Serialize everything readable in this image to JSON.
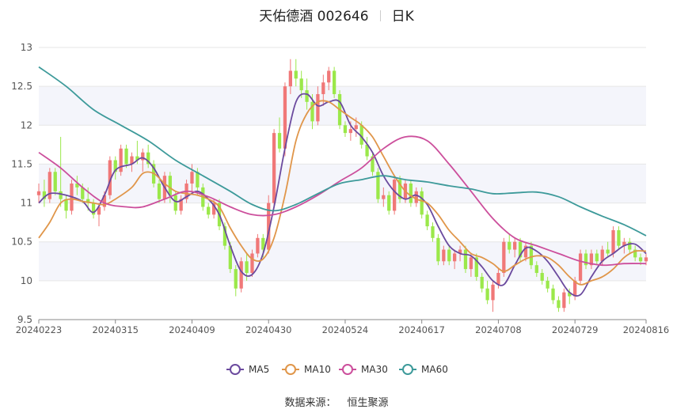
{
  "header": {
    "stock_name": "天佑德酒 002646",
    "period": "日K"
  },
  "source": {
    "label": "数据来源：",
    "provider": "恒生聚源"
  },
  "legend": [
    {
      "name": "MA5",
      "color": "#6b4a9e"
    },
    {
      "name": "MA10",
      "color": "#e0964a"
    },
    {
      "name": "MA30",
      "color": "#cc4f9c"
    },
    {
      "name": "MA60",
      "color": "#3d9a9a"
    }
  ],
  "colors": {
    "up": "#f07878",
    "down": "#9be84a",
    "band": "#f4f5fb",
    "grid": "#e6e6e6",
    "axis": "#888888"
  },
  "chart_data": {
    "type": "candlestick",
    "title": "天佑德酒 002646 日K",
    "ylim": [
      9.5,
      13
    ],
    "yticks": [
      9.5,
      10,
      10.5,
      11,
      11.5,
      12,
      12.5,
      13
    ],
    "xticks": [
      {
        "label": "20240223",
        "index": 0
      },
      {
        "label": "20240315",
        "index": 14
      },
      {
        "label": "20240409",
        "index": 28
      },
      {
        "label": "20240430",
        "index": 42
      },
      {
        "label": "20240524",
        "index": 56
      },
      {
        "label": "20240617",
        "index": 70
      },
      {
        "label": "20240708",
        "index": 84
      },
      {
        "label": "20240729",
        "index": 98
      },
      {
        "label": "20240816",
        "index": 111
      }
    ],
    "ohlc": [
      [
        11.1,
        11.25,
        11.0,
        11.15
      ],
      [
        11.15,
        11.3,
        10.95,
        11.05
      ],
      [
        11.05,
        11.45,
        11.0,
        11.4
      ],
      [
        11.4,
        11.45,
        11.1,
        11.15
      ],
      [
        11.15,
        11.85,
        10.95,
        11.05
      ],
      [
        11.05,
        11.1,
        10.8,
        10.9
      ],
      [
        10.9,
        11.3,
        10.85,
        11.25
      ],
      [
        11.25,
        11.35,
        11.1,
        11.2
      ],
      [
        11.2,
        11.25,
        11.0,
        11.05
      ],
      [
        11.05,
        11.2,
        10.9,
        11.0
      ],
      [
        11.0,
        11.05,
        10.8,
        10.85
      ],
      [
        10.85,
        11.0,
        10.7,
        10.95
      ],
      [
        10.95,
        11.15,
        10.9,
        11.1
      ],
      [
        11.1,
        11.6,
        11.05,
        11.55
      ],
      [
        11.55,
        11.6,
        11.3,
        11.4
      ],
      [
        11.4,
        11.75,
        11.35,
        11.7
      ],
      [
        11.7,
        11.75,
        11.45,
        11.5
      ],
      [
        11.5,
        11.65,
        11.4,
        11.6
      ],
      [
        11.6,
        11.8,
        11.5,
        11.55
      ],
      [
        11.55,
        11.7,
        11.4,
        11.65
      ],
      [
        11.65,
        11.75,
        11.45,
        11.5
      ],
      [
        11.5,
        11.55,
        11.2,
        11.25
      ],
      [
        11.25,
        11.3,
        11.0,
        11.05
      ],
      [
        11.05,
        11.4,
        11.0,
        11.35
      ],
      [
        11.35,
        11.4,
        11.0,
        11.1
      ],
      [
        11.1,
        11.15,
        10.85,
        10.9
      ],
      [
        10.9,
        11.1,
        10.85,
        11.05
      ],
      [
        11.05,
        11.3,
        11.0,
        11.25
      ],
      [
        11.25,
        11.5,
        11.15,
        11.4
      ],
      [
        11.4,
        11.45,
        11.1,
        11.2
      ],
      [
        11.2,
        11.25,
        10.9,
        10.95
      ],
      [
        10.95,
        11.0,
        10.8,
        10.85
      ],
      [
        10.85,
        11.05,
        10.8,
        11.0
      ],
      [
        11.0,
        11.05,
        10.65,
        10.7
      ],
      [
        10.7,
        10.75,
        10.4,
        10.45
      ],
      [
        10.45,
        10.5,
        10.1,
        10.15
      ],
      [
        10.15,
        10.2,
        9.8,
        9.9
      ],
      [
        9.9,
        10.3,
        9.85,
        10.25
      ],
      [
        10.25,
        10.35,
        10.0,
        10.1
      ],
      [
        10.1,
        10.4,
        10.05,
        10.35
      ],
      [
        10.35,
        10.6,
        10.3,
        10.55
      ],
      [
        10.55,
        10.6,
        10.3,
        10.4
      ],
      [
        10.4,
        11.1,
        10.35,
        11.0
      ],
      [
        11.0,
        11.95,
        10.95,
        11.9
      ],
      [
        11.9,
        12.1,
        11.65,
        11.7
      ],
      [
        11.7,
        12.55,
        11.6,
        12.5
      ],
      [
        12.5,
        12.85,
        12.4,
        12.7
      ],
      [
        12.7,
        12.85,
        12.5,
        12.6
      ],
      [
        12.6,
        12.7,
        12.35,
        12.45
      ],
      [
        12.45,
        12.6,
        12.2,
        12.3
      ],
      [
        12.3,
        12.4,
        11.95,
        12.05
      ],
      [
        12.05,
        12.5,
        12.0,
        12.4
      ],
      [
        12.4,
        12.65,
        12.25,
        12.55
      ],
      [
        12.55,
        12.75,
        12.45,
        12.7
      ],
      [
        12.7,
        12.75,
        12.35,
        12.4
      ],
      [
        12.4,
        12.45,
        11.95,
        12.0
      ],
      [
        12.0,
        12.05,
        11.85,
        11.9
      ],
      [
        11.9,
        12.05,
        11.8,
        11.95
      ],
      [
        11.95,
        12.1,
        11.85,
        12.0
      ],
      [
        12.0,
        12.05,
        11.7,
        11.75
      ],
      [
        11.75,
        11.85,
        11.55,
        11.6
      ],
      [
        11.6,
        11.65,
        11.35,
        11.4
      ],
      [
        11.4,
        11.45,
        11.0,
        11.05
      ],
      [
        11.05,
        11.2,
        10.95,
        11.1
      ],
      [
        11.1,
        11.15,
        10.85,
        10.9
      ],
      [
        10.9,
        11.35,
        10.85,
        11.3
      ],
      [
        11.3,
        11.35,
        11.0,
        11.05
      ],
      [
        11.05,
        11.3,
        11.0,
        11.25
      ],
      [
        11.25,
        11.3,
        10.95,
        11.0
      ],
      [
        11.0,
        11.2,
        10.95,
        11.15
      ],
      [
        11.15,
        11.2,
        10.8,
        10.85
      ],
      [
        10.85,
        10.9,
        10.65,
        10.7
      ],
      [
        10.7,
        10.75,
        10.5,
        10.55
      ],
      [
        10.55,
        10.6,
        10.2,
        10.25
      ],
      [
        10.25,
        10.45,
        10.2,
        10.4
      ],
      [
        10.4,
        10.45,
        10.2,
        10.25
      ],
      [
        10.25,
        10.4,
        10.15,
        10.35
      ],
      [
        10.35,
        10.45,
        10.25,
        10.4
      ],
      [
        10.4,
        10.45,
        10.1,
        10.15
      ],
      [
        10.15,
        10.35,
        10.05,
        10.3
      ],
      [
        10.3,
        10.35,
        10.0,
        10.05
      ],
      [
        10.05,
        10.1,
        9.85,
        9.9
      ],
      [
        9.9,
        10.0,
        9.7,
        9.75
      ],
      [
        9.75,
        10.0,
        9.6,
        9.95
      ],
      [
        9.95,
        10.15,
        9.9,
        10.1
      ],
      [
        10.1,
        10.55,
        10.05,
        10.5
      ],
      [
        10.5,
        10.6,
        10.35,
        10.4
      ],
      [
        10.4,
        10.55,
        10.3,
        10.5
      ],
      [
        10.5,
        10.55,
        10.25,
        10.3
      ],
      [
        10.3,
        10.5,
        10.25,
        10.45
      ],
      [
        10.45,
        10.5,
        10.15,
        10.2
      ],
      [
        10.2,
        10.25,
        10.05,
        10.1
      ],
      [
        10.1,
        10.15,
        9.95,
        10.0
      ],
      [
        10.0,
        10.05,
        9.85,
        9.9
      ],
      [
        9.9,
        9.95,
        9.7,
        9.75
      ],
      [
        9.75,
        9.8,
        9.6,
        9.65
      ],
      [
        9.65,
        9.9,
        9.6,
        9.85
      ],
      [
        9.85,
        9.9,
        9.7,
        9.8
      ],
      [
        9.8,
        10.05,
        9.75,
        10.0
      ],
      [
        10.0,
        10.4,
        9.95,
        10.35
      ],
      [
        10.35,
        10.4,
        10.15,
        10.2
      ],
      [
        10.2,
        10.4,
        10.15,
        10.35
      ],
      [
        10.35,
        10.4,
        10.2,
        10.25
      ],
      [
        10.25,
        10.45,
        10.2,
        10.4
      ],
      [
        10.4,
        10.5,
        10.3,
        10.35
      ],
      [
        10.35,
        10.7,
        10.3,
        10.65
      ],
      [
        10.65,
        10.7,
        10.4,
        10.45
      ],
      [
        10.45,
        10.55,
        10.35,
        10.5
      ],
      [
        10.5,
        10.55,
        10.35,
        10.4
      ],
      [
        10.4,
        10.45,
        10.25,
        10.3
      ],
      [
        10.3,
        10.35,
        10.2,
        10.25
      ],
      [
        10.25,
        10.35,
        10.2,
        10.3
      ]
    ],
    "series": [
      {
        "name": "MA5",
        "color": "#6b4a9e",
        "points": [
          [
            0,
            11.0
          ],
          [
            2,
            11.12
          ],
          [
            5,
            11.1
          ],
          [
            8,
            11.02
          ],
          [
            10,
            10.88
          ],
          [
            12,
            11.1
          ],
          [
            14,
            11.42
          ],
          [
            17,
            11.5
          ],
          [
            19,
            11.58
          ],
          [
            21,
            11.45
          ],
          [
            23,
            11.2
          ],
          [
            25,
            11.02
          ],
          [
            27,
            11.08
          ],
          [
            29,
            11.15
          ],
          [
            31,
            11.05
          ],
          [
            33,
            10.85
          ],
          [
            35,
            10.45
          ],
          [
            37,
            10.12
          ],
          [
            39,
            10.08
          ],
          [
            41,
            10.35
          ],
          [
            43,
            10.95
          ],
          [
            45,
            11.7
          ],
          [
            47,
            12.3
          ],
          [
            49,
            12.4
          ],
          [
            51,
            12.25
          ],
          [
            53,
            12.3
          ],
          [
            55,
            12.3
          ],
          [
            57,
            12.0
          ],
          [
            59,
            11.85
          ],
          [
            61,
            11.65
          ],
          [
            63,
            11.35
          ],
          [
            65,
            11.15
          ],
          [
            67,
            11.05
          ],
          [
            69,
            11.1
          ],
          [
            71,
            10.98
          ],
          [
            73,
            10.7
          ],
          [
            75,
            10.45
          ],
          [
            77,
            10.35
          ],
          [
            79,
            10.32
          ],
          [
            81,
            10.18
          ],
          [
            83,
            10.0
          ],
          [
            85,
            9.95
          ],
          [
            87,
            10.2
          ],
          [
            89,
            10.42
          ],
          [
            91,
            10.38
          ],
          [
            93,
            10.25
          ],
          [
            95,
            10.05
          ],
          [
            97,
            9.85
          ],
          [
            99,
            9.82
          ],
          [
            101,
            10.05
          ],
          [
            103,
            10.25
          ],
          [
            105,
            10.35
          ],
          [
            107,
            10.45
          ],
          [
            109,
            10.47
          ],
          [
            111,
            10.35
          ]
        ]
      },
      {
        "name": "MA10",
        "color": "#e0964a",
        "points": [
          [
            0,
            10.55
          ],
          [
            2,
            10.75
          ],
          [
            4,
            11.0
          ],
          [
            6,
            11.05
          ],
          [
            8,
            11.02
          ],
          [
            10,
            11.0
          ],
          [
            12,
            10.98
          ],
          [
            14,
            11.05
          ],
          [
            17,
            11.2
          ],
          [
            19,
            11.38
          ],
          [
            21,
            11.38
          ],
          [
            23,
            11.25
          ],
          [
            25,
            11.15
          ],
          [
            27,
            11.12
          ],
          [
            29,
            11.1
          ],
          [
            31,
            11.05
          ],
          [
            33,
            10.95
          ],
          [
            35,
            10.68
          ],
          [
            37,
            10.45
          ],
          [
            39,
            10.28
          ],
          [
            41,
            10.28
          ],
          [
            43,
            10.55
          ],
          [
            45,
            11.1
          ],
          [
            47,
            11.8
          ],
          [
            49,
            12.15
          ],
          [
            51,
            12.3
          ],
          [
            53,
            12.3
          ],
          [
            55,
            12.2
          ],
          [
            57,
            12.1
          ],
          [
            59,
            12.0
          ],
          [
            61,
            11.85
          ],
          [
            63,
            11.6
          ],
          [
            65,
            11.35
          ],
          [
            67,
            11.15
          ],
          [
            69,
            11.05
          ],
          [
            71,
            11.0
          ],
          [
            73,
            10.85
          ],
          [
            75,
            10.65
          ],
          [
            77,
            10.5
          ],
          [
            79,
            10.35
          ],
          [
            81,
            10.3
          ],
          [
            83,
            10.22
          ],
          [
            85,
            10.12
          ],
          [
            87,
            10.2
          ],
          [
            89,
            10.28
          ],
          [
            91,
            10.32
          ],
          [
            93,
            10.3
          ],
          [
            95,
            10.2
          ],
          [
            97,
            10.05
          ],
          [
            99,
            9.95
          ],
          [
            101,
            10.0
          ],
          [
            103,
            10.05
          ],
          [
            105,
            10.15
          ],
          [
            107,
            10.3
          ],
          [
            109,
            10.38
          ],
          [
            111,
            10.38
          ]
        ]
      },
      {
        "name": "MA30",
        "color": "#cc4f9c",
        "points": [
          [
            0,
            11.65
          ],
          [
            4,
            11.45
          ],
          [
            8,
            11.2
          ],
          [
            12,
            11.0
          ],
          [
            16,
            10.95
          ],
          [
            19,
            10.95
          ],
          [
            23,
            11.05
          ],
          [
            27,
            11.15
          ],
          [
            31,
            11.08
          ],
          [
            35,
            10.95
          ],
          [
            39,
            10.85
          ],
          [
            43,
            10.85
          ],
          [
            47,
            10.95
          ],
          [
            51,
            11.1
          ],
          [
            55,
            11.28
          ],
          [
            59,
            11.45
          ],
          [
            63,
            11.7
          ],
          [
            67,
            11.85
          ],
          [
            71,
            11.8
          ],
          [
            75,
            11.5
          ],
          [
            79,
            11.15
          ],
          [
            83,
            10.8
          ],
          [
            87,
            10.55
          ],
          [
            91,
            10.45
          ],
          [
            95,
            10.35
          ],
          [
            99,
            10.25
          ],
          [
            103,
            10.2
          ],
          [
            107,
            10.22
          ],
          [
            111,
            10.22
          ]
        ]
      },
      {
        "name": "MA60",
        "color": "#3d9a9a",
        "points": [
          [
            0,
            12.75
          ],
          [
            5,
            12.5
          ],
          [
            10,
            12.2
          ],
          [
            15,
            12.0
          ],
          [
            20,
            11.8
          ],
          [
            25,
            11.55
          ],
          [
            30,
            11.35
          ],
          [
            35,
            11.15
          ],
          [
            39,
            10.98
          ],
          [
            43,
            10.9
          ],
          [
            47,
            10.98
          ],
          [
            51,
            11.12
          ],
          [
            55,
            11.25
          ],
          [
            59,
            11.3
          ],
          [
            63,
            11.35
          ],
          [
            67,
            11.3
          ],
          [
            71,
            11.27
          ],
          [
            75,
            11.22
          ],
          [
            79,
            11.18
          ],
          [
            83,
            11.12
          ],
          [
            87,
            11.13
          ],
          [
            91,
            11.14
          ],
          [
            95,
            11.08
          ],
          [
            99,
            10.95
          ],
          [
            103,
            10.83
          ],
          [
            107,
            10.72
          ],
          [
            111,
            10.58
          ]
        ]
      }
    ]
  }
}
